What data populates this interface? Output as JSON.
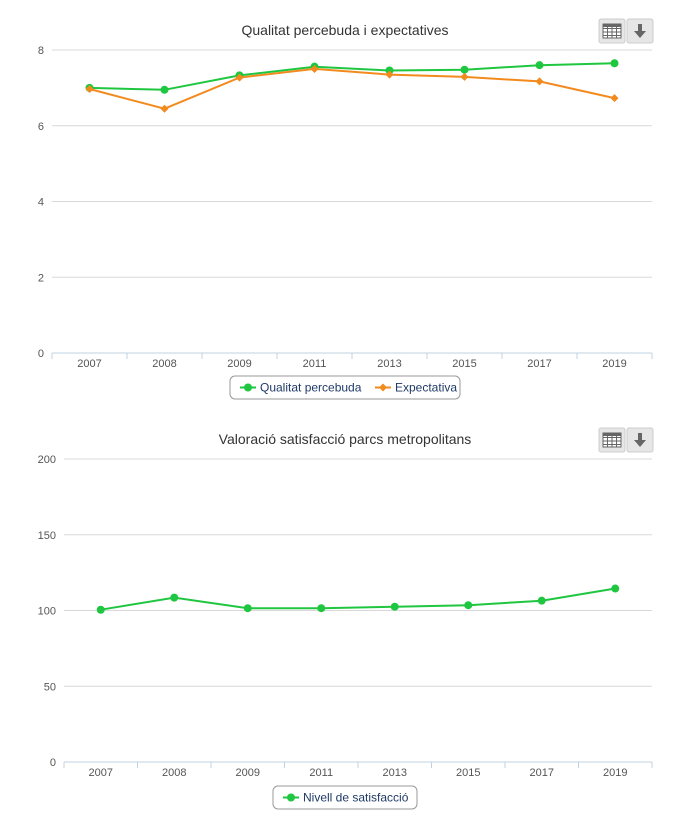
{
  "charts": [
    {
      "title": "Qualitat percebuda i expectatives",
      "buttons": {
        "table_icon": "table-icon",
        "download_icon": "download-arrow-icon"
      }
    },
    {
      "title": "Valoració satisfacció parcs metropolitans",
      "buttons": {
        "table_icon": "table-icon",
        "download_icon": "download-arrow-icon"
      }
    }
  ],
  "chart_data": [
    {
      "type": "line",
      "title": "Qualitat percebuda i expectatives",
      "categories": [
        "2007",
        "2008",
        "2009",
        "2011",
        "2013",
        "2015",
        "2017",
        "2019"
      ],
      "ylim": [
        0,
        8
      ],
      "yticks": [
        0,
        2,
        4,
        6,
        8
      ],
      "grid": true,
      "legend": "bottom-center",
      "series": [
        {
          "name": "Qualitat percebuda",
          "color": "#1fc640",
          "marker": "circle",
          "values": [
            7.0,
            6.95,
            7.33,
            7.56,
            7.46,
            7.48,
            7.6,
            7.65
          ]
        },
        {
          "name": "Expectativa",
          "color": "#f28a1e",
          "marker": "diamond",
          "values": [
            6.97,
            6.45,
            7.27,
            7.5,
            7.35,
            7.29,
            7.17,
            6.73
          ]
        }
      ]
    },
    {
      "type": "line",
      "title": "Valoració satisfacció parcs metropolitans",
      "categories": [
        "2007",
        "2008",
        "2009",
        "2011",
        "2013",
        "2015",
        "2017",
        "2019"
      ],
      "ylim": [
        0,
        200
      ],
      "yticks": [
        0,
        50,
        100,
        150,
        200
      ],
      "grid": true,
      "legend": "bottom-center",
      "series": [
        {
          "name": "Nivell de satisfacció",
          "color": "#1fc640",
          "marker": "circle",
          "values": [
            100.5,
            108.5,
            101.5,
            101.5,
            102.5,
            103.5,
            106.5,
            114.5
          ]
        }
      ]
    }
  ]
}
